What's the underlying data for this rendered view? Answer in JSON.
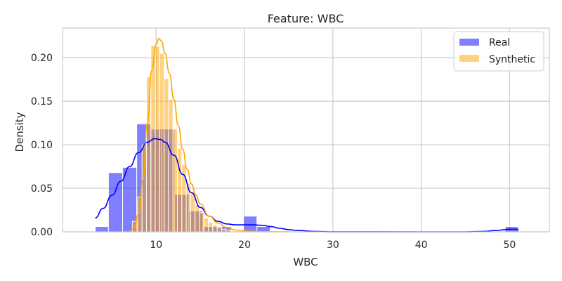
{
  "chart_data": {
    "type": "bar",
    "title": "Feature: WBC",
    "xlabel": "WBC",
    "ylabel": "Density",
    "xlim": [
      -0.6,
      54.5
    ],
    "ylim": [
      0,
      0.234
    ],
    "xticks": [
      10,
      20,
      30,
      40,
      50
    ],
    "yticks": [
      0.0,
      0.05,
      0.1,
      0.15,
      0.2
    ],
    "ytick_labels": [
      "0.00",
      "0.05",
      "0.10",
      "0.15",
      "0.20"
    ],
    "grid": true,
    "legend_position": "top-right",
    "colors": {
      "real": "#0000ff",
      "synthetic": "#ffa500",
      "grid": "#cccccc",
      "spine": "#cccccc"
    },
    "series": [
      {
        "name": "Real",
        "kind": "histogram",
        "bin_edges": [
          3.1,
          4.6,
          6.2,
          7.8,
          9.4,
          10.6,
          12.1,
          13.7,
          15.3,
          16.9,
          18.5,
          19.9,
          21.4,
          22.9,
          24.4,
          49.5,
          51.0
        ],
        "density": [
          0.006,
          0.068,
          0.074,
          0.124,
          0.118,
          0.118,
          0.043,
          0.024,
          0.006,
          0.006,
          0.0,
          0.018,
          0.006,
          0.0,
          0.0,
          0.006
        ]
      },
      {
        "name": "Synthetic",
        "kind": "histogram",
        "bin_edges": [
          7.3,
          7.9,
          8.4,
          8.9,
          9.4,
          9.9,
          10.4,
          10.9,
          11.4,
          11.9,
          12.4,
          12.9,
          13.4,
          13.9,
          14.4,
          14.9,
          15.4,
          15.9,
          16.4,
          16.9,
          17.4,
          17.9,
          18.4,
          18.9
        ],
        "density": [
          0.012,
          0.04,
          0.1,
          0.178,
          0.214,
          0.213,
          0.205,
          0.176,
          0.152,
          0.118,
          0.096,
          0.077,
          0.056,
          0.045,
          0.031,
          0.022,
          0.016,
          0.011,
          0.008,
          0.005,
          0.003,
          0.002,
          0.001
        ]
      }
    ],
    "kde": [
      {
        "name": "Real",
        "x": [
          3.1,
          4.0,
          5.0,
          6.0,
          7.0,
          8.0,
          9.0,
          9.8,
          10.5,
          11.0,
          12.0,
          13.0,
          14.0,
          15.0,
          16.0,
          17.0,
          18.0,
          19.0,
          20.0,
          21.0,
          22.0,
          23.0,
          24.0,
          25.0,
          26.0,
          28.0,
          30.0,
          40.0,
          45.0,
          47.0,
          48.5,
          49.5,
          50.0,
          50.5,
          51.0
        ],
        "y": [
          0.016,
          0.027,
          0.042,
          0.058,
          0.075,
          0.091,
          0.103,
          0.107,
          0.106,
          0.103,
          0.088,
          0.066,
          0.045,
          0.028,
          0.018,
          0.012,
          0.009,
          0.008,
          0.008,
          0.008,
          0.0075,
          0.006,
          0.004,
          0.0025,
          0.0015,
          0.0005,
          0.0001,
          0.0,
          0.0,
          0.0005,
          0.0015,
          0.0025,
          0.003,
          0.003,
          0.0025
        ]
      },
      {
        "name": "Synthetic",
        "x": [
          7.0,
          7.5,
          8.0,
          8.5,
          9.0,
          9.5,
          10.0,
          10.3,
          10.6,
          11.0,
          11.5,
          12.0,
          12.5,
          13.0,
          13.5,
          14.0,
          14.5,
          15.0,
          16.0,
          17.0,
          18.0,
          19.0,
          20.0,
          22.0,
          25.0
        ],
        "y": [
          0.0,
          0.005,
          0.02,
          0.06,
          0.125,
          0.185,
          0.215,
          0.222,
          0.219,
          0.205,
          0.182,
          0.152,
          0.122,
          0.095,
          0.072,
          0.055,
          0.042,
          0.032,
          0.018,
          0.01,
          0.005,
          0.002,
          0.001,
          0.0002,
          0.0
        ]
      }
    ]
  }
}
